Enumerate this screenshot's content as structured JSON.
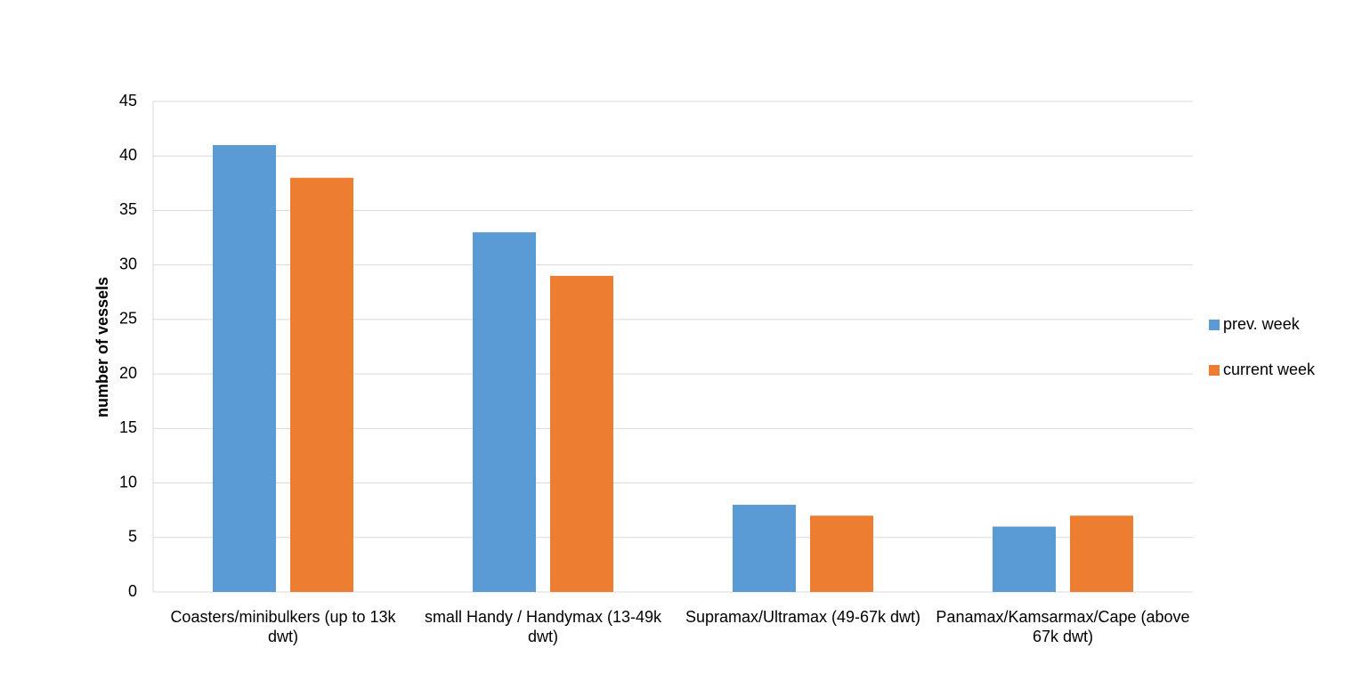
{
  "chart_data": {
    "type": "bar",
    "y_label": "number of vessels",
    "categories": [
      "Coasters/minibulkers (up to 13k dwt)",
      "small Handy / Handymax (13-49k dwt)",
      "Supramax/Ultramax (49-67k dwt)",
      "Panamax/Kamsarmax/Cape (above 67k dwt)"
    ],
    "series": [
      {
        "name": "prev. week",
        "color": "#5b9bd5",
        "values": [
          41,
          33,
          8,
          6
        ]
      },
      {
        "name": "current week",
        "color": "#ed7d31",
        "values": [
          38,
          29,
          7,
          7
        ]
      }
    ],
    "ylim": [
      0,
      45
    ],
    "yticks": [
      0,
      5,
      10,
      15,
      20,
      25,
      30,
      35,
      40,
      45
    ],
    "grid": true,
    "legend": "right"
  }
}
